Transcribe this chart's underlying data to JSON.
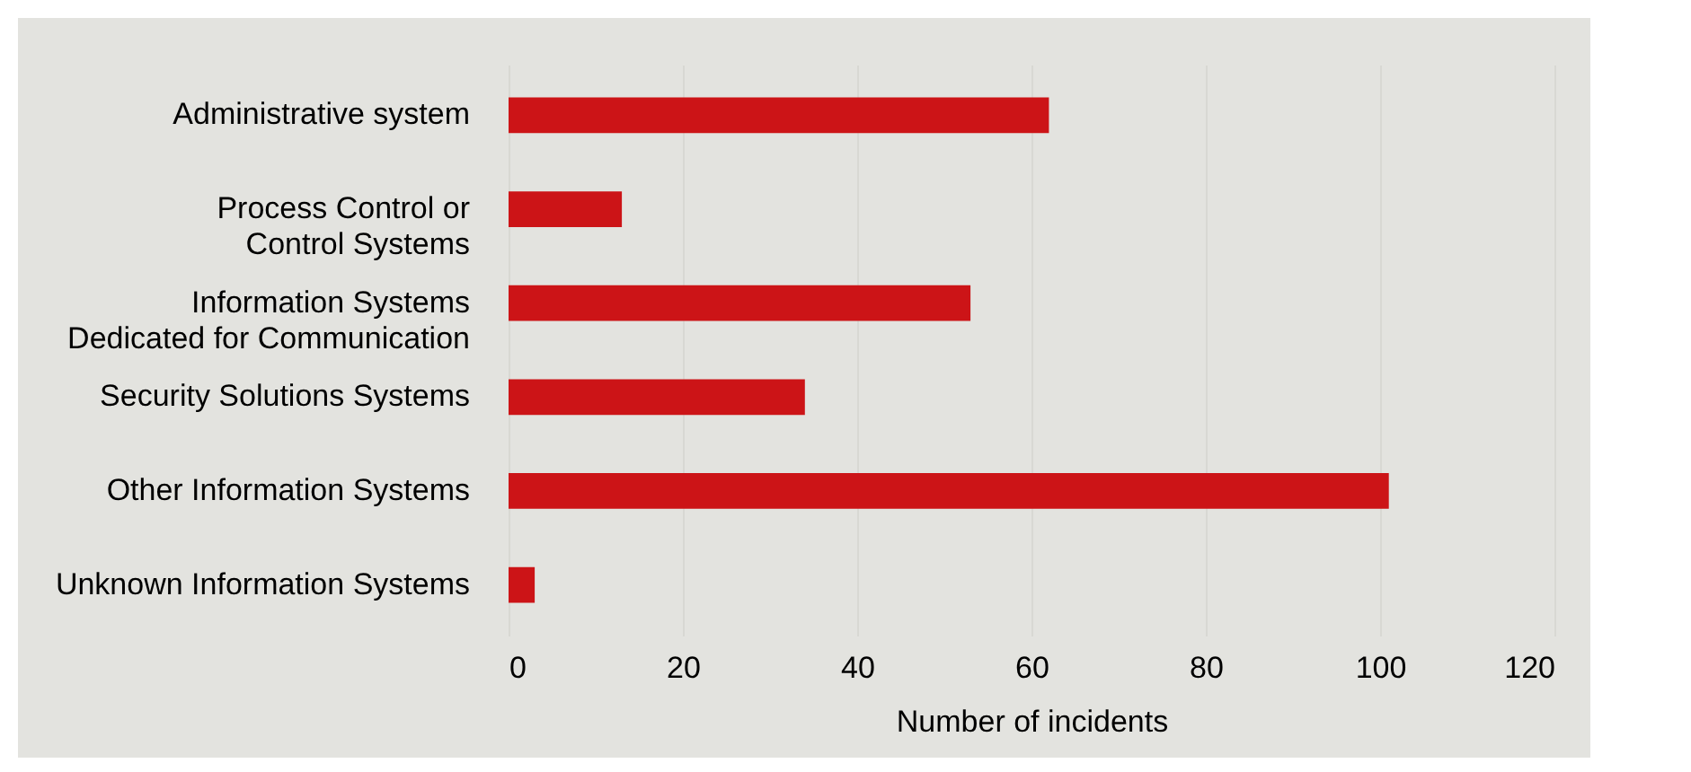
{
  "chart_data": {
    "type": "bar",
    "orientation": "horizontal",
    "xlabel": "Number of incidents",
    "categories": [
      "Administrative system",
      "Process Control or\nControl Systems",
      "Information Systems\nDedicated for Communication",
      "Security Solutions Systems",
      "Other Information Systems",
      "Unknown Information Systems"
    ],
    "values": [
      62,
      13,
      53,
      34,
      101,
      3
    ],
    "color": "#cc1417",
    "xlim": [
      0,
      120
    ],
    "xticks": [
      0,
      20,
      40,
      60,
      80,
      100,
      120
    ],
    "grid": "x"
  }
}
